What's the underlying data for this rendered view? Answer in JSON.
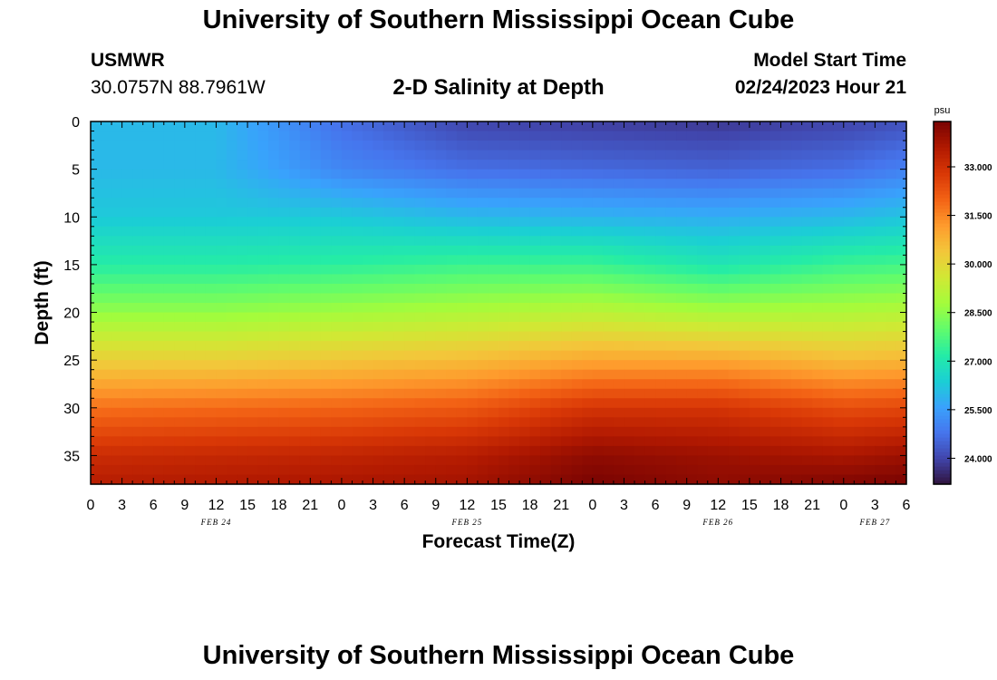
{
  "header": {
    "title": "University of Southern Mississippi Ocean Cube",
    "station_id": "USMWR",
    "coordinates": "30.0757N  88.7961W",
    "subtitle": "2-D Salinity at Depth",
    "model_start_label": "Model Start Time",
    "model_start_time": "02/24/2023 Hour 21"
  },
  "footer": {
    "title": "University of Southern Mississippi Ocean Cube"
  },
  "chart_data": {
    "type": "heatmap",
    "title": "2-D Salinity at Depth",
    "xlabel": "Forecast Time(Z)",
    "ylabel": "Depth (ft)",
    "x_tick_labels": [
      "0",
      "3",
      "6",
      "9",
      "12",
      "15",
      "18",
      "21",
      "0",
      "3",
      "6",
      "9",
      "12",
      "15",
      "18",
      "21",
      "0",
      "3",
      "6",
      "9",
      "12",
      "15",
      "18",
      "21",
      "0",
      "3",
      "6"
    ],
    "x_range_hours": [
      0,
      78
    ],
    "day_labels": [
      "FEB 24",
      "FEB 25",
      "FEB 26",
      "FEB 27"
    ],
    "day_label_hours": [
      12,
      36,
      60,
      75
    ],
    "y_ticks": [
      0,
      5,
      10,
      15,
      20,
      25,
      30,
      35
    ],
    "ylim": [
      0,
      38
    ],
    "y_inverted": true,
    "colorbar": {
      "unit": "psu",
      "min": 23.2,
      "max": 34.4,
      "tick_labels": [
        "24.000",
        "25.500",
        "27.000",
        "28.500",
        "30.000",
        "31.500",
        "33.000"
      ],
      "tick_values": [
        24.0,
        25.5,
        27.0,
        28.5,
        30.0,
        31.5,
        33.0
      ],
      "colors": [
        "#30123b",
        "#4145ab",
        "#4675ed",
        "#39a2fc",
        "#1bcfd4",
        "#24eca6",
        "#61fc6c",
        "#a4fc3b",
        "#d1e834",
        "#f3c63a",
        "#fe9b2d",
        "#f36315",
        "#d93806",
        "#b11901",
        "#7a0402"
      ]
    },
    "depth_levels_ft": [
      0,
      5,
      10,
      15,
      20,
      25,
      30,
      35,
      38
    ],
    "profile_times_hours": [
      0,
      12,
      24,
      36,
      48,
      60,
      72,
      78
    ],
    "salinity_psu": [
      [
        26.0,
        26.0,
        26.3,
        27.2,
        28.6,
        30.2,
        31.8,
        33.1,
        33.5
      ],
      [
        26.0,
        26.0,
        26.3,
        27.2,
        28.6,
        30.2,
        31.9,
        33.2,
        33.6
      ],
      [
        24.7,
        25.1,
        26.3,
        27.3,
        28.8,
        30.4,
        32.0,
        33.3,
        33.7
      ],
      [
        24.0,
        24.7,
        26.0,
        27.5,
        29.0,
        30.6,
        32.2,
        33.5,
        33.8
      ],
      [
        23.9,
        24.6,
        25.9,
        27.5,
        29.2,
        31.0,
        32.9,
        34.1,
        34.4
      ],
      [
        23.8,
        24.5,
        25.8,
        27.0,
        28.9,
        31.0,
        32.9,
        33.9,
        34.1
      ],
      [
        24.0,
        24.7,
        26.0,
        27.5,
        29.0,
        30.6,
        32.4,
        33.7,
        34.3
      ],
      [
        24.2,
        25.0,
        26.2,
        27.6,
        29.1,
        30.7,
        32.5,
        33.9,
        34.4
      ]
    ]
  }
}
